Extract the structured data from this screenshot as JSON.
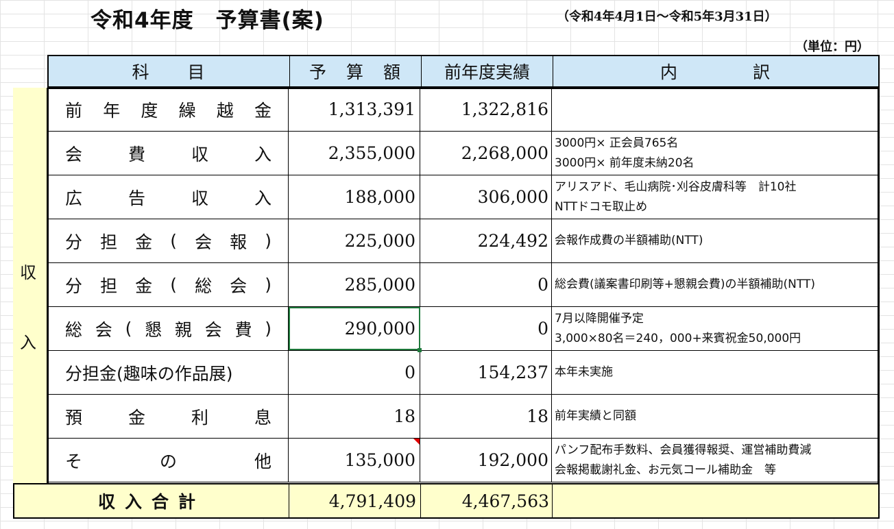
{
  "sheet": {
    "title": "令和4年度　予算書(案)",
    "period": "（令和4年4月1日～令和5年3月31日）",
    "unit": "（単位：円）"
  },
  "table": {
    "headers": {
      "subject": "科　　目",
      "budget": "予　算　額",
      "previous": "前年度実績",
      "breakdown": "内　　　　訳"
    },
    "section_label": [
      "収",
      "入"
    ],
    "rows": [
      {
        "subject": [
          "前",
          "年",
          "度",
          "繰",
          "越",
          "金"
        ],
        "budget": "1,313,391",
        "previous": "1,322,816",
        "notes": []
      },
      {
        "subject": [
          "会",
          "費",
          "収",
          "入"
        ],
        "budget": "2,355,000",
        "previous": "2,268,000",
        "notes": [
          "3000円× 正会員765名",
          "3000円× 前年度未納20名"
        ]
      },
      {
        "subject": [
          "広",
          "告",
          "収",
          "入"
        ],
        "budget": "188,000",
        "previous": "306,000",
        "notes": [
          "アリスアド、毛山病院･刈谷皮膚科等　計10社",
          "NTTドコモ取止め"
        ]
      },
      {
        "subject": [
          "分",
          "担",
          "金",
          "(",
          "会",
          "報",
          ")"
        ],
        "budget": "225,000",
        "previous": "224,492",
        "notes": [
          "会報作成費の半額補助(NTT)"
        ]
      },
      {
        "subject": [
          "分",
          "担",
          "金",
          "(",
          "総",
          "会",
          ")"
        ],
        "budget": "285,000",
        "previous": "0",
        "notes": [
          "総会費(議案書印刷等+懇親会費)の半額補助(NTT)"
        ]
      },
      {
        "subject": [
          "総",
          "会",
          "(",
          "懇",
          "親",
          "会",
          "費",
          ")"
        ],
        "budget": "290,000",
        "previous": "0",
        "notes": [
          "7月以降開催予定",
          "3,000×80名＝240，000+来賓祝金50,000円"
        ]
      },
      {
        "subject": [
          "分担金(趣味の作品展)"
        ],
        "budget": "0",
        "previous": "154,237",
        "notes": [
          "本年未実施"
        ]
      },
      {
        "subject": [
          "預",
          "金",
          "利",
          "息"
        ],
        "budget": "18",
        "previous": "18",
        "notes": [
          "前年実績と同額"
        ]
      },
      {
        "subject": [
          "そ",
          "の",
          "他"
        ],
        "budget": "135,000",
        "previous": "192,000",
        "notes": [
          "パンフ配布手数料、会員獲得報奨、運営補助費減",
          "会報掲載謝礼金、お元気コール補助金　等"
        ]
      }
    ],
    "total": {
      "label": "収入合計",
      "budget": "4,791,409",
      "previous": "4,467,563"
    }
  }
}
